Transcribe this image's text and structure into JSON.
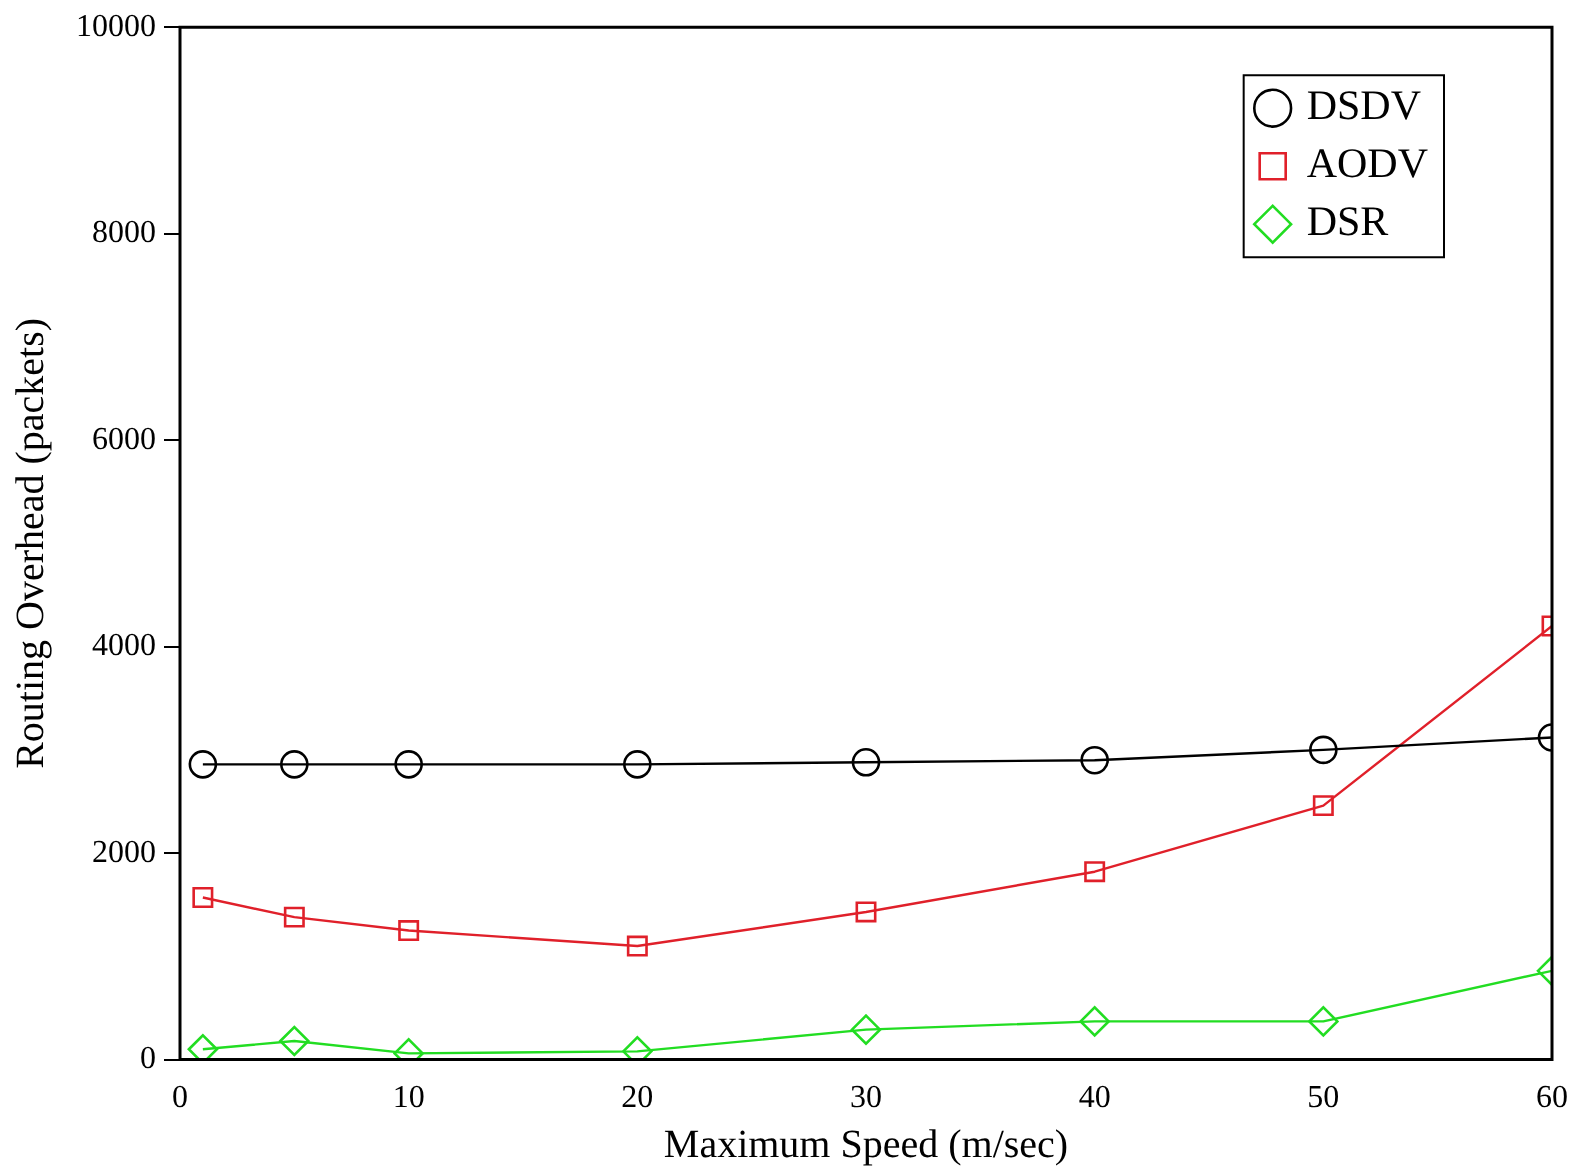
{
  "chart_data": {
    "type": "line",
    "xlabel": "Maximum Speed (m/sec)",
    "ylabel": "Routing Overhead (packets)",
    "x": [
      1,
      5,
      10,
      20,
      30,
      40,
      50,
      60
    ],
    "series": [
      {
        "name": "DSDV",
        "color": "#000000",
        "marker": "circle",
        "values": [
          2860,
          2860,
          2860,
          2860,
          2880,
          2900,
          3000,
          3120
        ]
      },
      {
        "name": "AODV",
        "color": "#e0202a",
        "marker": "square",
        "values": [
          1570,
          1380,
          1250,
          1100,
          1430,
          1820,
          2460,
          4200
        ]
      },
      {
        "name": "DSR",
        "color": "#22dd22",
        "marker": "diamond",
        "values": [
          100,
          180,
          60,
          80,
          290,
          370,
          370,
          860
        ]
      }
    ],
    "xlim": [
      0,
      60
    ],
    "xticks": [
      0,
      10,
      20,
      30,
      40,
      50,
      60
    ],
    "ylim": [
      0,
      10000
    ],
    "yticks": [
      0,
      2000,
      4000,
      6000,
      8000,
      10000
    ],
    "grid": false,
    "legend": "top right"
  }
}
